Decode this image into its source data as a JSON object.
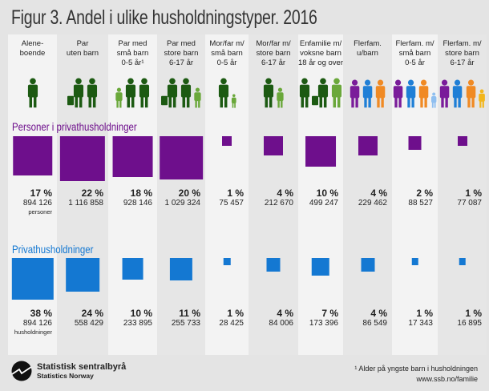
{
  "title": "Figur 3. Andel i ulike husholdningstyper. 2016",
  "colors": {
    "persons": "#6e0f8c",
    "households": "#1478d2",
    "adult": "#1c5a12",
    "child": "#6aa83a",
    "purple": "#7a1c9a",
    "blue": "#1f7fd6",
    "orange": "#f08a24",
    "yellow": "#f2b61c"
  },
  "sections": {
    "persons": "Personer i privathusholdninger",
    "households": "Privathusholdninger"
  },
  "units": {
    "persons": "personer",
    "households": "husholdninger"
  },
  "chart_data": {
    "type": "proportional-squares",
    "categories": [
      "Alene-\nboende",
      "Par\nuten barn",
      "Par med\nsmå barn\n0-5 år¹",
      "Par med\nstore barn\n6-17 år",
      "Mor/far m/\nsmå barn\n0-5 år",
      "Mor/far m/\nstore barn\n6-17 år",
      "Enfamilie m/\nvoksne barn\n18 år og over",
      "Flerfam.\nu/barn",
      "Flerfam. m/\nsmå barn\n0-5 år",
      "Flerfam. m/\nstore barn\n6-17 år"
    ],
    "series": [
      {
        "name": "Personer i privathusholdninger",
        "percent": [
          "17 %",
          "22 %",
          "18 %",
          "20 %",
          "1 %",
          "4 %",
          "10 %",
          "4 %",
          "2 %",
          "1 %"
        ],
        "values": [
          17,
          22,
          18,
          20,
          1,
          4,
          10,
          4,
          2,
          1
        ],
        "counts": [
          "894 126",
          "1 116 858",
          "928 146",
          "1 029 324",
          "75 457",
          "212 670",
          "499 247",
          "229 462",
          "88 527",
          "77 087"
        ]
      },
      {
        "name": "Privathusholdninger",
        "percent": [
          "38 %",
          "24 %",
          "10 %",
          "11 %",
          "1 %",
          "4 %",
          "7 %",
          "4 %",
          "1 %",
          "1 %"
        ],
        "values": [
          38,
          24,
          10,
          11,
          1,
          4,
          7,
          4,
          1,
          1
        ],
        "counts": [
          "894 126",
          "558 429",
          "233 895",
          "255 733",
          "28 425",
          "84 006",
          "173 396",
          "86 549",
          "17 343",
          "16 895"
        ]
      }
    ]
  },
  "figures": [
    [
      "adult"
    ],
    [
      "adult-bag",
      "adult"
    ],
    [
      "child",
      "adult",
      "adult"
    ],
    [
      "adult-bag",
      "adult",
      "child"
    ],
    [
      "adult",
      "small-child"
    ],
    [
      "adult",
      "child"
    ],
    [
      "adult",
      "adult-bag",
      "adult-light"
    ],
    [
      "purple",
      "blue",
      "orange"
    ],
    [
      "purple",
      "blue",
      "orange",
      "small-blue"
    ],
    [
      "purple",
      "blue",
      "orange",
      "yellow"
    ]
  ],
  "footer": {
    "logo_name": "Statistisk sentralbyrå",
    "logo_sub": "Statistics Norway",
    "note": "¹ Alder på yngste barn i husholdningen",
    "url": "www.ssb.no/familie"
  }
}
